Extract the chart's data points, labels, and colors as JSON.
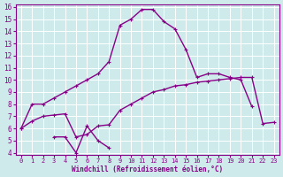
{
  "x": [
    0,
    1,
    2,
    3,
    4,
    5,
    6,
    7,
    8,
    9,
    10,
    11,
    12,
    13,
    14,
    15,
    16,
    17,
    18,
    19,
    20,
    21,
    22,
    23
  ],
  "line1": [
    6.0,
    8.0,
    8.0,
    8.5,
    9.0,
    9.5,
    10.0,
    10.5,
    11.5,
    14.5,
    15.0,
    15.8,
    15.8,
    14.8,
    14.2,
    12.5,
    10.2,
    10.5,
    10.5,
    10.2,
    10.0,
    7.8,
    null,
    null
  ],
  "line2": [
    null,
    null,
    null,
    5.3,
    5.3,
    4.0,
    6.2,
    5.0,
    4.4,
    null,
    null,
    null,
    null,
    null,
    null,
    null,
    null,
    null,
    null,
    null,
    null,
    null,
    null,
    null
  ],
  "line3": [
    6.0,
    6.6,
    7.0,
    7.1,
    7.2,
    5.3,
    5.5,
    6.2,
    6.3,
    7.5,
    8.0,
    8.5,
    9.0,
    9.2,
    9.5,
    9.6,
    9.8,
    9.9,
    10.0,
    10.1,
    10.2,
    10.2,
    6.4,
    6.5
  ],
  "bg_color": "#ceeaea",
  "grid_color": "#ffffff",
  "line_color": "#880088",
  "xlabel": "Windchill (Refroidissement éolien,°C)",
  "ylim": [
    4,
    16
  ],
  "xlim": [
    -0.5,
    23.5
  ],
  "yticks": [
    4,
    5,
    6,
    7,
    8,
    9,
    10,
    11,
    12,
    13,
    14,
    15,
    16
  ],
  "xticks": [
    0,
    1,
    2,
    3,
    4,
    5,
    6,
    7,
    8,
    9,
    10,
    11,
    12,
    13,
    14,
    15,
    16,
    17,
    18,
    19,
    20,
    21,
    22,
    23
  ]
}
